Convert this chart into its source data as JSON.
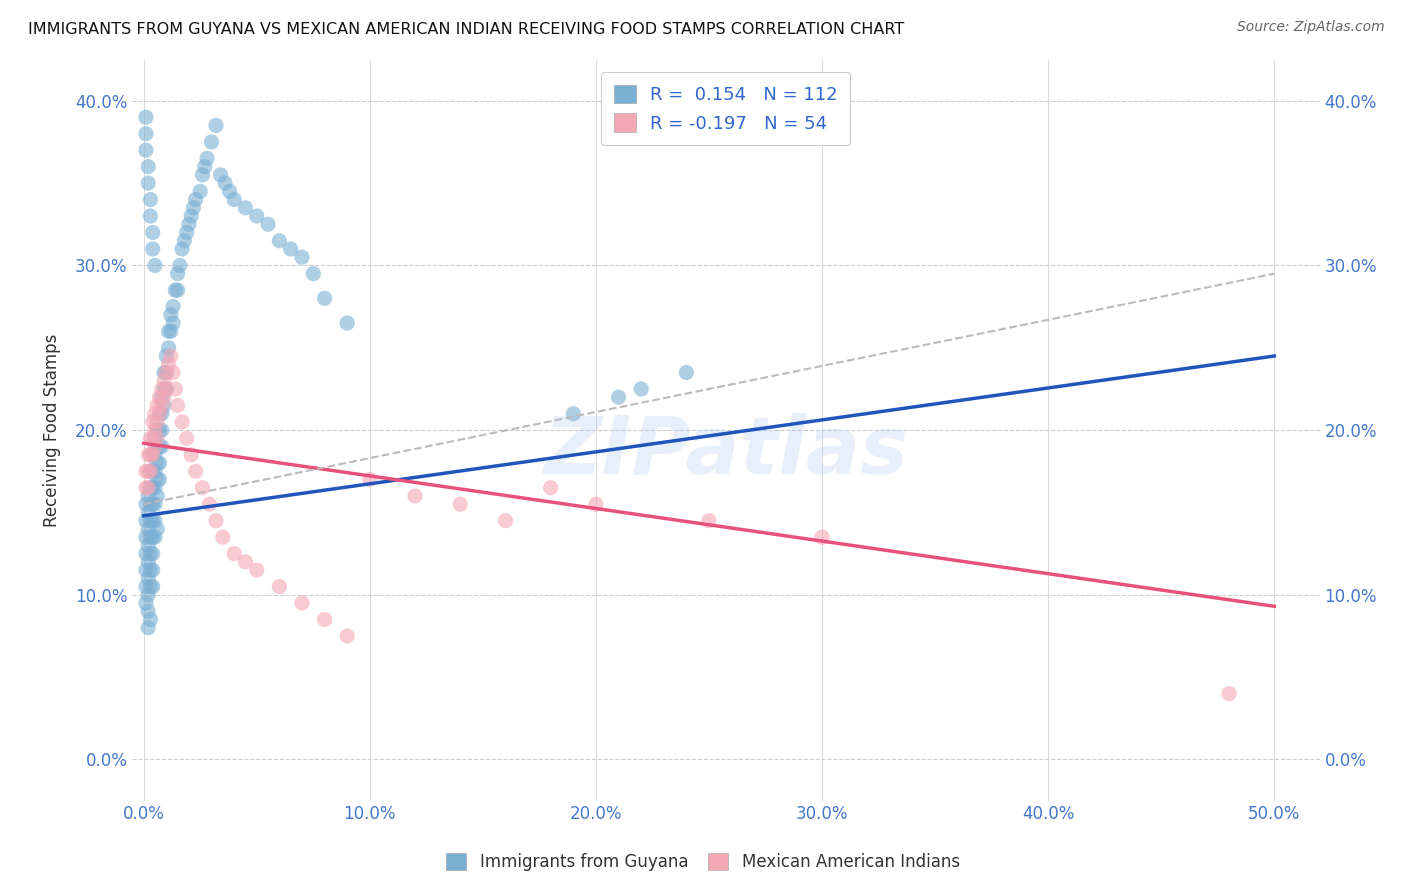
{
  "title": "IMMIGRANTS FROM GUYANA VS MEXICAN AMERICAN INDIAN RECEIVING FOOD STAMPS CORRELATION CHART",
  "source": "Source: ZipAtlas.com",
  "xlabel_ticks": [
    "0.0%",
    "10.0%",
    "20.0%",
    "30.0%",
    "40.0%",
    "50.0%"
  ],
  "xlabel_vals": [
    0.0,
    0.1,
    0.2,
    0.3,
    0.4,
    0.5
  ],
  "ylabel_ticks": [
    "0.0%",
    "10.0%",
    "20.0%",
    "30.0%",
    "40.0%"
  ],
  "ylabel_vals": [
    0.0,
    0.1,
    0.2,
    0.3,
    0.4
  ],
  "xlim": [
    -0.005,
    0.52
  ],
  "ylim": [
    -0.025,
    0.425
  ],
  "blue_color": "#7BAFD4",
  "pink_color": "#F4A7B5",
  "blue_line_color": "#2255BB",
  "pink_line_color": "#E8527A",
  "dashed_line_color": "#BBBBBB",
  "watermark": "ZIPatlas",
  "legend_label1": "Immigrants from Guyana",
  "legend_label2": "Mexican American Indians",
  "blue_scatter_x": [
    0.001,
    0.001,
    0.001,
    0.001,
    0.001,
    0.001,
    0.001,
    0.002,
    0.002,
    0.002,
    0.002,
    0.002,
    0.002,
    0.002,
    0.002,
    0.002,
    0.003,
    0.003,
    0.003,
    0.003,
    0.003,
    0.003,
    0.003,
    0.003,
    0.003,
    0.004,
    0.004,
    0.004,
    0.004,
    0.004,
    0.004,
    0.004,
    0.004,
    0.004,
    0.005,
    0.005,
    0.005,
    0.005,
    0.005,
    0.005,
    0.005,
    0.006,
    0.006,
    0.006,
    0.006,
    0.006,
    0.006,
    0.007,
    0.007,
    0.007,
    0.007,
    0.007,
    0.008,
    0.008,
    0.008,
    0.008,
    0.009,
    0.009,
    0.009,
    0.01,
    0.01,
    0.01,
    0.011,
    0.011,
    0.012,
    0.012,
    0.013,
    0.013,
    0.014,
    0.015,
    0.015,
    0.016,
    0.017,
    0.018,
    0.019,
    0.02,
    0.021,
    0.022,
    0.023,
    0.025,
    0.026,
    0.027,
    0.028,
    0.03,
    0.032,
    0.034,
    0.036,
    0.038,
    0.04,
    0.045,
    0.05,
    0.055,
    0.06,
    0.065,
    0.07,
    0.075,
    0.08,
    0.09,
    0.19,
    0.21,
    0.22,
    0.24,
    0.001,
    0.001,
    0.001,
    0.002,
    0.002,
    0.003,
    0.003,
    0.004,
    0.004,
    0.005
  ],
  "blue_scatter_y": [
    0.155,
    0.145,
    0.135,
    0.125,
    0.115,
    0.105,
    0.095,
    0.16,
    0.15,
    0.14,
    0.13,
    0.12,
    0.11,
    0.1,
    0.09,
    0.08,
    0.175,
    0.165,
    0.155,
    0.145,
    0.135,
    0.125,
    0.115,
    0.105,
    0.085,
    0.185,
    0.175,
    0.165,
    0.155,
    0.145,
    0.135,
    0.125,
    0.115,
    0.105,
    0.195,
    0.185,
    0.175,
    0.165,
    0.155,
    0.145,
    0.135,
    0.2,
    0.19,
    0.18,
    0.17,
    0.16,
    0.14,
    0.21,
    0.2,
    0.19,
    0.18,
    0.17,
    0.22,
    0.21,
    0.2,
    0.19,
    0.235,
    0.225,
    0.215,
    0.245,
    0.235,
    0.225,
    0.26,
    0.25,
    0.27,
    0.26,
    0.275,
    0.265,
    0.285,
    0.295,
    0.285,
    0.3,
    0.31,
    0.315,
    0.32,
    0.325,
    0.33,
    0.335,
    0.34,
    0.345,
    0.355,
    0.36,
    0.365,
    0.375,
    0.385,
    0.355,
    0.35,
    0.345,
    0.34,
    0.335,
    0.33,
    0.325,
    0.315,
    0.31,
    0.305,
    0.295,
    0.28,
    0.265,
    0.21,
    0.22,
    0.225,
    0.235,
    0.39,
    0.38,
    0.37,
    0.36,
    0.35,
    0.34,
    0.33,
    0.32,
    0.31,
    0.3
  ],
  "pink_scatter_x": [
    0.001,
    0.001,
    0.002,
    0.002,
    0.002,
    0.003,
    0.003,
    0.003,
    0.004,
    0.004,
    0.004,
    0.005,
    0.005,
    0.005,
    0.006,
    0.006,
    0.006,
    0.007,
    0.007,
    0.008,
    0.008,
    0.009,
    0.009,
    0.01,
    0.01,
    0.011,
    0.012,
    0.013,
    0.014,
    0.015,
    0.017,
    0.019,
    0.021,
    0.023,
    0.026,
    0.029,
    0.032,
    0.035,
    0.04,
    0.045,
    0.05,
    0.06,
    0.07,
    0.08,
    0.09,
    0.1,
    0.12,
    0.14,
    0.16,
    0.18,
    0.2,
    0.25,
    0.3,
    0.48
  ],
  "pink_scatter_y": [
    0.175,
    0.165,
    0.185,
    0.175,
    0.165,
    0.195,
    0.185,
    0.175,
    0.205,
    0.195,
    0.185,
    0.21,
    0.2,
    0.19,
    0.215,
    0.205,
    0.195,
    0.22,
    0.21,
    0.225,
    0.215,
    0.23,
    0.22,
    0.235,
    0.225,
    0.24,
    0.245,
    0.235,
    0.225,
    0.215,
    0.205,
    0.195,
    0.185,
    0.175,
    0.165,
    0.155,
    0.145,
    0.135,
    0.125,
    0.12,
    0.115,
    0.105,
    0.095,
    0.085,
    0.075,
    0.17,
    0.16,
    0.155,
    0.145,
    0.165,
    0.155,
    0.145,
    0.135,
    0.04
  ],
  "blue_trend_x": [
    0.0,
    0.5
  ],
  "blue_trend_y": [
    0.148,
    0.245
  ],
  "pink_trend_x": [
    0.0,
    0.5
  ],
  "pink_trend_y": [
    0.192,
    0.093
  ],
  "dashed_trend_x": [
    0.0,
    0.5
  ],
  "dashed_trend_y": [
    0.155,
    0.295
  ]
}
